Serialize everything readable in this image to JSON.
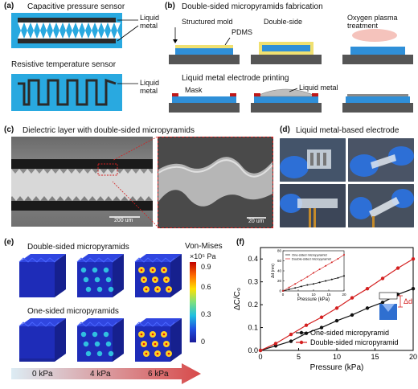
{
  "panel_a": {
    "label": "(a)",
    "title_cap": "Capacitive pressure sensor",
    "liquid_metal_1": "Liquid\nmetal",
    "title_res": "Resistive temperature sensor",
    "liquid_metal_2": "Liquid\nmetal"
  },
  "panel_b": {
    "label": "(b)",
    "title": "Double-sided micropyramids fabrication",
    "structured_mold": "Structured mold",
    "pdms": "PDMS",
    "double_side": "Double-side",
    "oxygen_plasma": "Oxygen plasma\ntreatment",
    "printing_title": "Liquid metal electrode printing",
    "mask": "Mask",
    "liquid_metal": "Liquid metal"
  },
  "panel_c": {
    "label": "(c)",
    "title": "Dielectric layer with double-sided micropyramids",
    "scale_left": "200 um",
    "scale_right": "20 um"
  },
  "panel_d": {
    "label": "(d)",
    "title": "Liquid metal-based electrode"
  },
  "panel_e": {
    "label": "(e)",
    "title_double": "Double-sided micropyramids",
    "title_one": "One-sided micropyramids",
    "colorbar_title": "Von-Mises",
    "colorbar_unit": "×10⁵ Pa",
    "colorbar_ticks": [
      "0.9",
      "0.6",
      "0.3",
      "0"
    ],
    "pressures": [
      "0 kPa",
      "4 kPa",
      "6 kPa"
    ],
    "colors": {
      "low": "#1f2fc8",
      "high": "#d01010",
      "arrow": "#d84a4a"
    }
  },
  "panel_f": {
    "label": "(f)",
    "delta_d": "Δd"
  },
  "chart_data": [
    {
      "type": "line",
      "xlabel": "Pressure (kPa)",
      "ylabel": "ΔC/C₀",
      "xlim": [
        0,
        20
      ],
      "ylim": [
        0,
        0.45
      ],
      "xticks": [
        "0",
        "5",
        "10",
        "15",
        "20"
      ],
      "yticks": [
        "0.0",
        "0.1",
        "0.2",
        "0.3",
        "0.4"
      ],
      "legend": "bottom-right",
      "series": [
        {
          "name": "One-sided micropyramid",
          "color": "#111111",
          "x": [
            0,
            2,
            4,
            6,
            8,
            10,
            12,
            14,
            16,
            18,
            20
          ],
          "y": [
            0.0,
            0.02,
            0.04,
            0.075,
            0.1,
            0.13,
            0.155,
            0.185,
            0.21,
            0.245,
            0.27
          ]
        },
        {
          "name": "Double-sided micropyramid",
          "color": "#d42020",
          "x": [
            0,
            2,
            4,
            6,
            8,
            10,
            12,
            14,
            16,
            18,
            20
          ],
          "y": [
            0.0,
            0.03,
            0.07,
            0.11,
            0.145,
            0.185,
            0.23,
            0.27,
            0.315,
            0.36,
            0.4
          ]
        }
      ]
    },
    {
      "type": "line",
      "xlabel": "Pressure (kPa)",
      "ylabel": "Δd (nm)",
      "xlim": [
        0,
        20
      ],
      "ylim": [
        0,
        80
      ],
      "xticks": [
        "0",
        "5",
        "10",
        "15",
        "20"
      ],
      "yticks": [
        "0",
        "20",
        "40",
        "60",
        "80"
      ],
      "legend": "top-left",
      "series": [
        {
          "name": "One-sided micropyramid",
          "color": "#111111",
          "x": [
            0,
            2,
            4,
            6,
            8,
            10,
            12,
            14,
            16,
            18,
            20
          ],
          "y": [
            0,
            3,
            6,
            9,
            12,
            14,
            17,
            20,
            23,
            26,
            30
          ]
        },
        {
          "name": "Double-sided micropyramid",
          "color": "#d42020",
          "x": [
            0,
            2,
            4,
            6,
            8,
            10,
            12,
            14,
            16,
            18,
            20
          ],
          "y": [
            0,
            7,
            14,
            21,
            28,
            36,
            43,
            50,
            57,
            64,
            72
          ]
        }
      ]
    }
  ]
}
